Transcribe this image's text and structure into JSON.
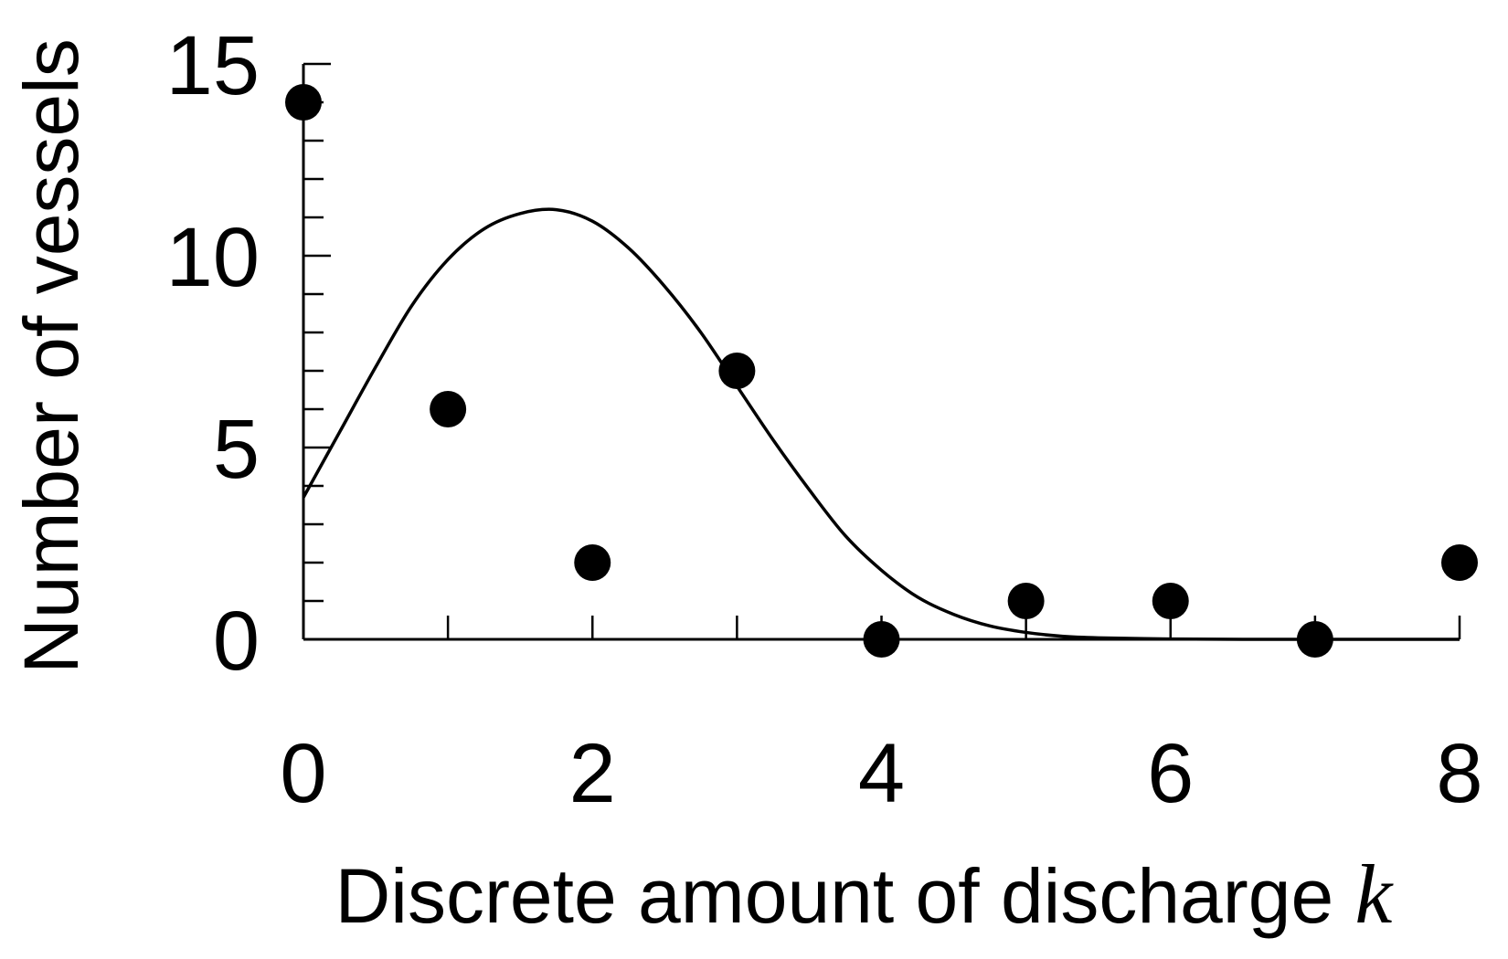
{
  "chart_data": {
    "type": "scatter",
    "xlabel": "Discrete amount of discharge",
    "xlabel_variable": "k",
    "ylabel": "Number of vessels",
    "xlim": [
      0,
      8
    ],
    "ylim": [
      0,
      15
    ],
    "x_ticks": [
      0,
      2,
      4,
      6,
      8
    ],
    "x_minor_ticks": [
      0,
      1,
      2,
      3,
      4,
      5,
      6,
      7,
      8
    ],
    "y_ticks": [
      0,
      5,
      10,
      15
    ],
    "y_minor_step": 1,
    "grid": false,
    "legend": "none",
    "series": [
      {
        "type": "scatter",
        "marker": "filled-circle",
        "color": "#000000",
        "points": [
          {
            "x": 0,
            "y": 14
          },
          {
            "x": 1,
            "y": 6
          },
          {
            "x": 2,
            "y": 2
          },
          {
            "x": 3,
            "y": 7
          },
          {
            "x": 4,
            "y": 0
          },
          {
            "x": 5,
            "y": 1
          },
          {
            "x": 6,
            "y": 1
          },
          {
            "x": 7,
            "y": 0
          },
          {
            "x": 8,
            "y": 2
          }
        ]
      },
      {
        "type": "line",
        "style": "smooth-curve",
        "color": "#000000",
        "points": [
          {
            "x": 0.0,
            "y": 3.7
          },
          {
            "x": 0.25,
            "y": 5.4
          },
          {
            "x": 0.5,
            "y": 7.1
          },
          {
            "x": 0.75,
            "y": 8.7
          },
          {
            "x": 1.0,
            "y": 9.9
          },
          {
            "x": 1.25,
            "y": 10.7
          },
          {
            "x": 1.5,
            "y": 11.1
          },
          {
            "x": 1.75,
            "y": 11.2
          },
          {
            "x": 2.0,
            "y": 10.9
          },
          {
            "x": 2.25,
            "y": 10.2
          },
          {
            "x": 2.5,
            "y": 9.2
          },
          {
            "x": 2.75,
            "y": 8.0
          },
          {
            "x": 3.0,
            "y": 6.6
          },
          {
            "x": 3.25,
            "y": 5.2
          },
          {
            "x": 3.5,
            "y": 3.9
          },
          {
            "x": 3.75,
            "y": 2.7
          },
          {
            "x": 4.0,
            "y": 1.8
          },
          {
            "x": 4.25,
            "y": 1.1
          },
          {
            "x": 4.5,
            "y": 0.65
          },
          {
            "x": 4.75,
            "y": 0.35
          },
          {
            "x": 5.0,
            "y": 0.18
          },
          {
            "x": 5.25,
            "y": 0.08
          },
          {
            "x": 5.5,
            "y": 0.04
          },
          {
            "x": 6.0,
            "y": 0.01
          },
          {
            "x": 6.5,
            "y": 0.0
          },
          {
            "x": 7.0,
            "y": 0.0
          },
          {
            "x": 8.0,
            "y": 0.0
          }
        ]
      }
    ]
  }
}
